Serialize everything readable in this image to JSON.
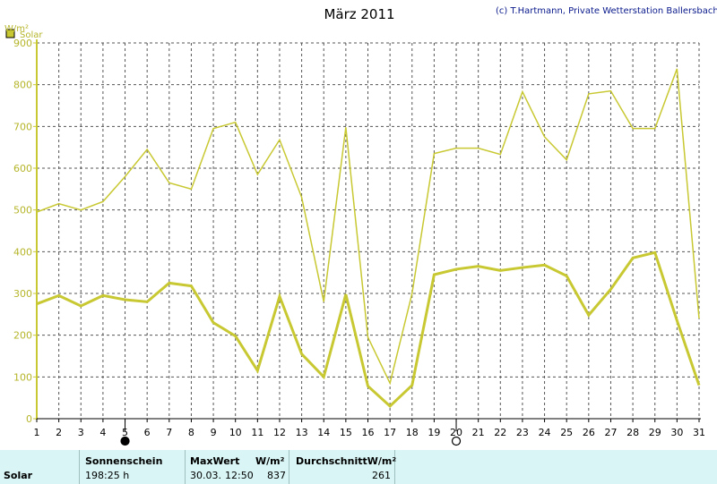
{
  "chart_data": {
    "type": "line",
    "title": "März 2011",
    "credit": "(c) T.Hartmann, Private Wetterstation Ballersbach",
    "y_unit": "W/m²",
    "ylim": [
      0,
      900
    ],
    "y_ticks": [
      0,
      100,
      200,
      300,
      400,
      500,
      600,
      700,
      800,
      900
    ],
    "x": [
      1,
      2,
      3,
      4,
      5,
      6,
      7,
      8,
      9,
      10,
      11,
      12,
      13,
      14,
      15,
      16,
      17,
      18,
      19,
      20,
      21,
      22,
      23,
      24,
      25,
      26,
      27,
      28,
      29,
      30,
      31
    ],
    "grid": true,
    "legend": {
      "position": "top-left",
      "entries": [
        "Solar"
      ]
    },
    "moon_markers": [
      {
        "day": 5,
        "phase": "new-moon"
      },
      {
        "day": 20,
        "phase": "full-moon"
      }
    ],
    "series": [
      {
        "name": "Solar",
        "role": "max",
        "values": [
          495,
          515,
          500,
          520,
          580,
          645,
          565,
          550,
          695,
          710,
          585,
          668,
          530,
          280,
          698,
          195,
          85,
          300,
          635,
          648,
          648,
          633,
          783,
          675,
          620,
          778,
          785,
          695,
          695,
          838,
          240
        ],
        "color": "#c8c832"
      },
      {
        "role": "average",
        "values": [
          275,
          295,
          270,
          295,
          285,
          280,
          325,
          318,
          230,
          198,
          115,
          293,
          155,
          100,
          298,
          78,
          30,
          80,
          345,
          358,
          365,
          355,
          362,
          368,
          342,
          248,
          310,
          385,
          398,
          235,
          80
        ],
        "color": "#c8c832"
      }
    ]
  },
  "footer": {
    "row_label": "Solar",
    "sunshine_header": "Sonnenschein",
    "sunshine_value": "198:25 h",
    "max_header": "MaxWert",
    "max_unit": "W/m²",
    "max_date": "30.03.",
    "max_time": "12:50",
    "max_value": "837",
    "avg_header": "DurchschnittW/m²",
    "avg_value": "261"
  }
}
